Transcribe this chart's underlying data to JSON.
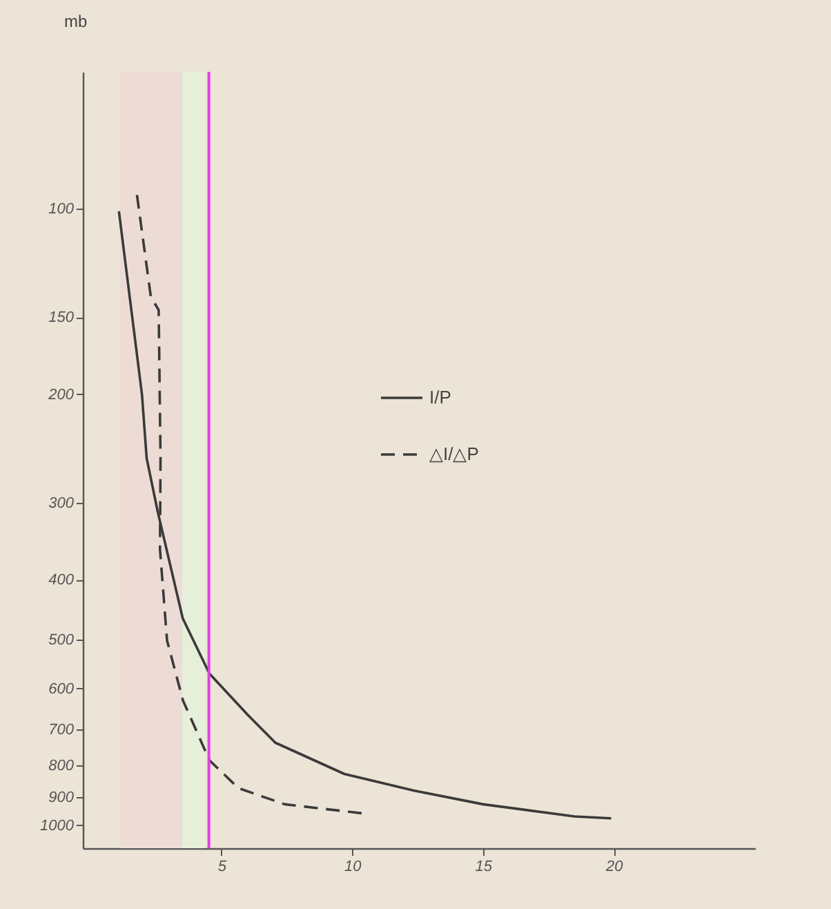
{
  "chart_data": {
    "type": "line",
    "ylabel": "mb",
    "log": "y",
    "xlim": [
      -0.3,
      25.4
    ],
    "xticks": [
      5,
      10,
      15,
      20
    ],
    "ylim": [
      1090,
      60
    ],
    "yticks": [
      100,
      150,
      200,
      300,
      400,
      500,
      600,
      700,
      800,
      900,
      1000
    ],
    "grid": false,
    "legend": "top right",
    "series": [
      {
        "name": "I/P",
        "color": "#3a3a3a",
        "line_style": "solid",
        "x": [
          1.08,
          1.96,
          2.14,
          2.57,
          3.52,
          4.54,
          6.0,
          7.06,
          9.7,
          12.35,
          15.0,
          18.5,
          19.9
        ],
        "values": [
          101,
          200,
          254,
          311,
          462,
          568,
          662,
          735,
          826,
          879,
          925,
          968,
          975
        ]
      },
      {
        "name": "△I/△P",
        "color": "#3a3a3a",
        "line_style": "dashed",
        "x": [
          1.77,
          2.3,
          2.6,
          2.67,
          2.65,
          2.92,
          3.53,
          4.54,
          5.65,
          7.42,
          10.4
        ],
        "values": [
          95,
          139,
          146,
          254,
          357,
          502,
          628,
          785,
          871,
          925,
          957
        ]
      }
    ],
    "bands": [
      {
        "axis": "x",
        "from": 1.1,
        "to": 3.5,
        "color": "#eddcd6"
      },
      {
        "axis": "x",
        "from": 3.5,
        "to": 4.4,
        "color": "#e6efd9"
      }
    ],
    "ref_lines": [
      {
        "axis": "x",
        "value": 4.52,
        "color": "#e040e0"
      }
    ]
  }
}
